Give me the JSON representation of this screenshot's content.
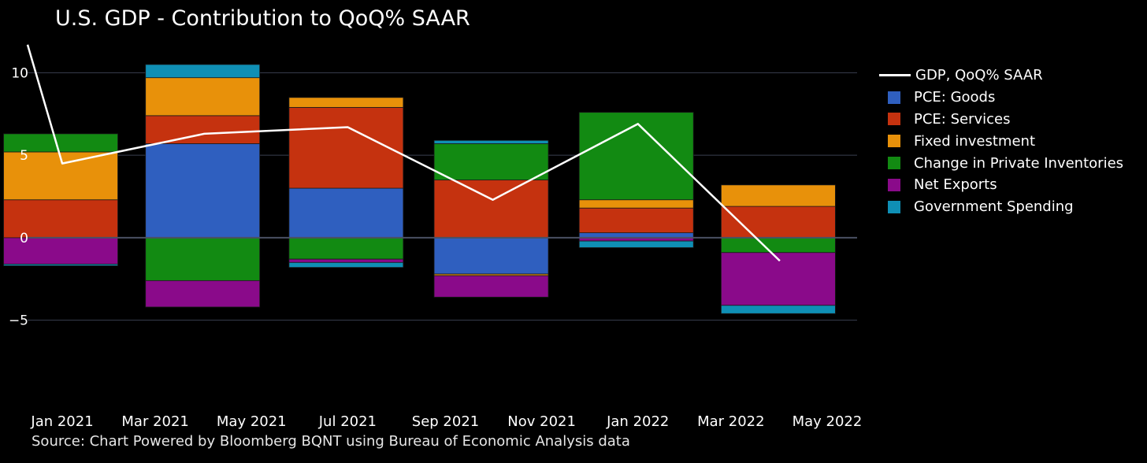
{
  "chart_data": {
    "type": "bar",
    "stacked": true,
    "title": "U.S. GDP - Contribution to QoQ% SAAR",
    "source": "Source: Chart Powered by Bloomberg BQNT using Bureau of Economic Analysis data",
    "x_ticks": [
      "Jan 2021",
      "Mar 2021",
      "May 2021",
      "Jul 2021",
      "Sep 2021",
      "Nov 2021",
      "Jan 2022",
      "Mar 2022",
      "May 2022"
    ],
    "y_ticks": [
      -5,
      0,
      5,
      10
    ],
    "ylim": [
      -8.5,
      12.5
    ],
    "xlim": [
      "2020-12-10",
      "2022-05-20"
    ],
    "grid": true,
    "legend_position": "right",
    "bar_dates": [
      "2020-12-31",
      "2021-03-31",
      "2021-06-30",
      "2021-09-30",
      "2021-12-31",
      "2022-03-31"
    ],
    "line_x": [
      "2020-12-10",
      "2021-01-01",
      "2021-04-01",
      "2021-07-01",
      "2021-10-01",
      "2022-01-01",
      "2022-04-01"
    ],
    "line_series": {
      "name": "GDP, QoQ% SAAR",
      "color": "#ffffff",
      "values": [
        11.7,
        4.5,
        6.3,
        6.7,
        2.3,
        6.9,
        -1.4
      ]
    },
    "series": [
      {
        "name": "PCE: Goods",
        "color": "#2f5fbf",
        "values": [
          0.0,
          5.7,
          3.0,
          -2.2,
          0.3,
          0.0
        ]
      },
      {
        "name": "PCE: Services",
        "color": "#c5320f",
        "values": [
          2.3,
          1.7,
          4.9,
          3.5,
          1.5,
          1.9
        ]
      },
      {
        "name": "Fixed investment",
        "color": "#e8910a",
        "values": [
          2.9,
          2.3,
          0.6,
          -0.1,
          0.5,
          1.3
        ]
      },
      {
        "name": "Change in Private Inventories",
        "color": "#128a12",
        "values": [
          1.1,
          -2.6,
          -1.3,
          2.2,
          5.3,
          -0.9
        ]
      },
      {
        "name": "Net Exports",
        "color": "#8a0a8a",
        "values": [
          -1.6,
          -1.6,
          -0.2,
          -1.3,
          -0.2,
          -3.2
        ]
      },
      {
        "name": "Government Spending",
        "color": "#0f8fb5",
        "values": [
          -0.1,
          0.8,
          -0.3,
          0.2,
          -0.4,
          -0.5
        ]
      }
    ]
  }
}
